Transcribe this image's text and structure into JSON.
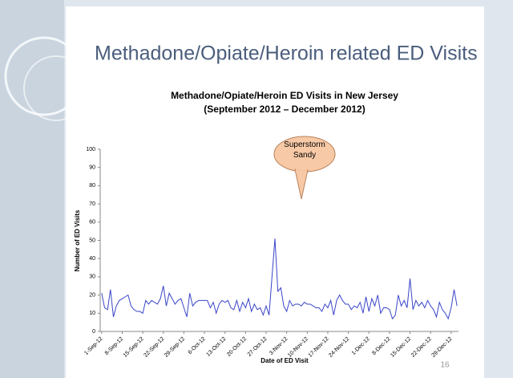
{
  "slide": {
    "title": "Methadone/Opiate/Heroin related ED Visits",
    "page_number": "16"
  },
  "chart_data": {
    "type": "line",
    "title": "Methadone/Opiate/Heroin ED Visits in New Jersey",
    "subtitle": "(September 2012 – December 2012)",
    "x_label": "Date of ED Visit",
    "y_label": "Number of ED Visits",
    "annotation": "Superstorm Sandy",
    "color": "#3a45c8",
    "grid": false,
    "ylim": [
      0,
      100
    ],
    "yticks": [
      0,
      10,
      20,
      30,
      40,
      50,
      60,
      70,
      80,
      90,
      100
    ],
    "categories": [
      "1-Sep-12",
      null,
      null,
      null,
      null,
      null,
      null,
      "8-Sep-12",
      null,
      null,
      null,
      null,
      null,
      null,
      "15-Sep-12",
      null,
      null,
      null,
      null,
      null,
      null,
      "22-Sep-12",
      null,
      null,
      null,
      null,
      null,
      null,
      "29-Sep-12",
      null,
      null,
      null,
      null,
      null,
      null,
      "6-Oct-12",
      null,
      null,
      null,
      null,
      null,
      null,
      "13-Oct-12",
      null,
      null,
      null,
      null,
      null,
      null,
      "20-Oct-12",
      null,
      null,
      null,
      null,
      null,
      null,
      "27-Oct-12",
      null,
      null,
      null,
      null,
      null,
      null,
      "3-Nov-12",
      null,
      null,
      null,
      null,
      null,
      null,
      "10-Nov-12",
      null,
      null,
      null,
      null,
      null,
      null,
      "17-Nov-12",
      null,
      null,
      null,
      null,
      null,
      null,
      "24-Nov-12",
      null,
      null,
      null,
      null,
      null,
      null,
      "1-Dec-12",
      null,
      null,
      null,
      null,
      null,
      null,
      "8-Dec-12",
      null,
      null,
      null,
      null,
      null,
      null,
      "15-Dec-12",
      null,
      null,
      null,
      null,
      null,
      null,
      "22-Dec-12",
      null,
      null,
      null,
      null,
      null,
      null,
      "29-Dec-12",
      null,
      null
    ],
    "values": [
      21,
      13,
      12,
      23,
      8,
      14,
      17,
      18,
      19,
      20,
      14,
      12,
      11,
      11,
      10,
      17,
      15,
      17,
      16,
      15,
      18,
      25,
      14,
      21,
      18,
      15,
      17,
      18,
      13,
      8,
      21,
      14,
      16,
      17,
      17,
      17,
      17,
      13,
      16,
      10,
      15,
      17,
      16,
      17,
      13,
      12,
      17,
      11,
      16,
      13,
      18,
      11,
      15,
      12,
      13,
      9,
      14,
      9,
      30,
      51,
      22,
      24,
      14,
      11,
      17,
      14,
      15,
      15,
      14,
      16,
      15,
      15,
      14,
      13,
      13,
      11,
      15,
      13,
      17,
      9,
      17,
      20,
      17,
      15,
      15,
      12,
      14,
      13,
      16,
      10,
      19,
      11,
      18,
      14,
      20,
      10,
      13,
      13,
      12,
      7,
      9,
      20,
      14,
      17,
      13,
      29,
      12,
      17,
      14,
      16,
      13,
      17,
      14,
      12,
      8,
      16,
      12,
      10,
      7,
      13,
      23,
      14
    ]
  }
}
